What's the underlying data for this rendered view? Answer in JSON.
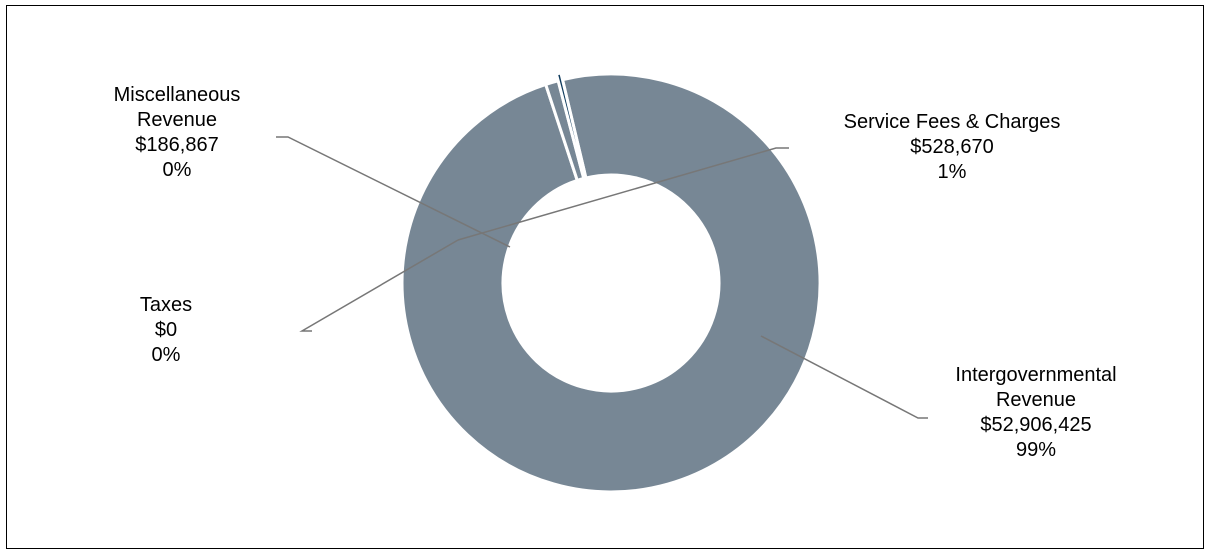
{
  "chart_data": {
    "type": "pie",
    "variant": "donut",
    "slices": [
      {
        "name": "Intergovernmental Revenue",
        "name_lines": [
          "Intergovernmental",
          "Revenue"
        ],
        "value": 52906425,
        "value_label": "$52,906,425",
        "percent_label": "99%",
        "color": "#778795"
      },
      {
        "name": "Service Fees & Charges",
        "name_lines": [
          "Service Fees & Charges"
        ],
        "value": 528670,
        "value_label": "$528,670",
        "percent_label": "1%",
        "color": "#778795"
      },
      {
        "name": "Taxes",
        "name_lines": [
          "Taxes"
        ],
        "value": 0,
        "value_label": "$0",
        "percent_label": "0%",
        "color": "#778795"
      },
      {
        "name": "Miscellaneous Revenue",
        "name_lines": [
          "Miscellaneous",
          "Revenue"
        ],
        "value": 186867,
        "value_label": "$186,867",
        "percent_label": "0%",
        "color": "#0e3a5c"
      }
    ],
    "legend": "none",
    "labels": "outside with leader lines"
  }
}
